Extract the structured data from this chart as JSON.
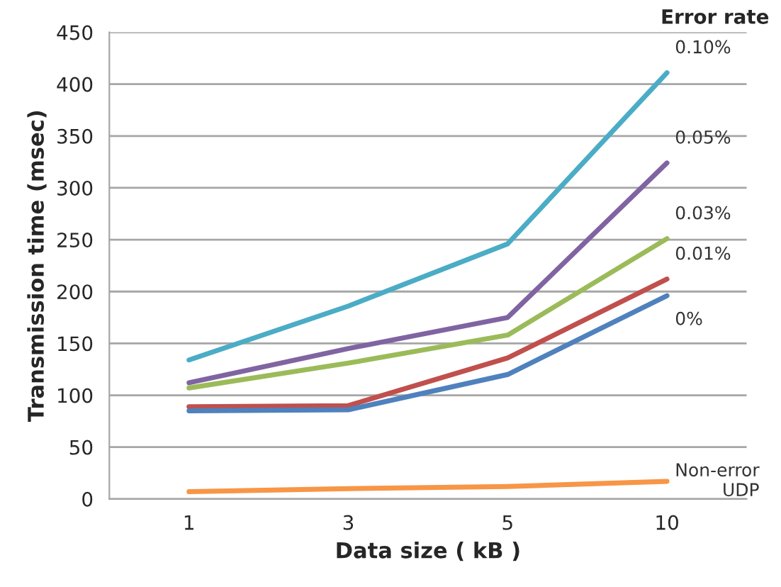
{
  "chart_data": {
    "type": "line",
    "xlabel": "Data size ( kB )",
    "ylabel": "Transmission time (msec)",
    "legend_title": "Error rate",
    "categories": [
      "1",
      "3",
      "5",
      "10"
    ],
    "series": [
      {
        "name": "0.10%",
        "color": "#4bacc6",
        "values": [
          134,
          186,
          246,
          411
        ]
      },
      {
        "name": "0.05%",
        "color": "#8064a2",
        "values": [
          112,
          145,
          175,
          324
        ]
      },
      {
        "name": "0.03%",
        "color": "#9bbb59",
        "values": [
          107,
          131,
          158,
          251
        ]
      },
      {
        "name": "0.01%",
        "color": "#c0504d",
        "values": [
          89,
          90,
          136,
          212
        ]
      },
      {
        "name": "0%",
        "color": "#4f81bd",
        "values": [
          85,
          86,
          120,
          196
        ]
      },
      {
        "name": "Non-error\nUDP",
        "color": "#f79646",
        "values": [
          7,
          10,
          12,
          17
        ]
      }
    ],
    "ylim": [
      0,
      450
    ],
    "yticks": [
      0,
      50,
      100,
      150,
      200,
      250,
      300,
      350,
      400,
      450
    ],
    "grid": "y",
    "legend": false,
    "marker": "none",
    "line_style": "solid"
  }
}
